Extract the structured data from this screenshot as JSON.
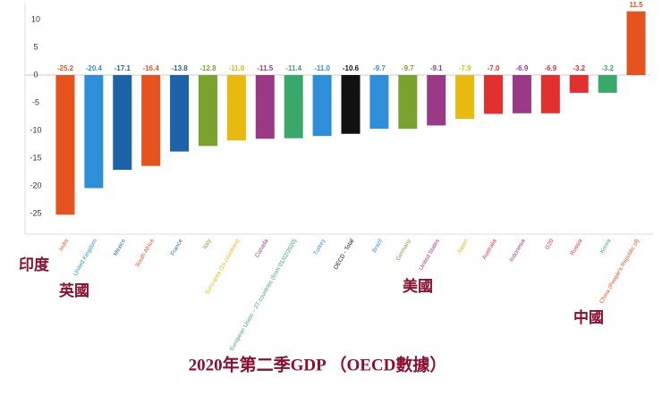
{
  "chart_data": {
    "type": "bar",
    "title": "2020年第二季GDP （OECD數據）",
    "annotations": [
      "印度",
      "英國",
      "美國",
      "中國"
    ],
    "categories": [
      "India",
      "United Kingdom",
      "Mexico",
      "South Africa",
      "France",
      "Italy",
      "Euro area (19 countries)",
      "Canada",
      "European Union – 27 countries (from 01/02/2020)",
      "Turkey",
      "OECD - Total",
      "Brazil",
      "Germany",
      "United States",
      "Japan",
      "Australia",
      "Indonesia",
      "G20",
      "Russia",
      "Korea",
      "China (People's Republic of)"
    ],
    "values": [
      -25.2,
      -20.4,
      -17.1,
      -16.4,
      -13.8,
      -12.8,
      -11.8,
      -11.5,
      -11.4,
      -11.0,
      -10.6,
      -9.7,
      -9.7,
      -9.1,
      -7.9,
      -7.0,
      -6.9,
      -6.9,
      -3.2,
      -3.2,
      11.5
    ],
    "value_labels": [
      "-25.2",
      "-20.4",
      "-17.1",
      "-16.4",
      "-13.8",
      "-12.8",
      "-11.8",
      "-11.5",
      "-11.4",
      "-11.0",
      "-10.6",
      "-9.7",
      "-9.7",
      "-9.1",
      "-7.9",
      "-7.0",
      "-6.9",
      "-6.9",
      "-3.2",
      "-3.2",
      "11.5"
    ],
    "colors": [
      "#e5531f",
      "#2e8fd8",
      "#1e63a8",
      "#e5531f",
      "#1e63a8",
      "#7aa22f",
      "#e8b90f",
      "#9a3a86",
      "#3aa86b",
      "#2e8fd8",
      "#111111",
      "#2e8fd8",
      "#7aa22f",
      "#9a3a86",
      "#e8b90f",
      "#e03030",
      "#9a3a86",
      "#e03030",
      "#e03030",
      "#3aa86b",
      "#e5531f"
    ],
    "ylim": [
      -28,
      12.5
    ],
    "yticks": [
      10,
      5,
      0,
      -5,
      -10,
      -15,
      -20,
      -25
    ],
    "grid": false
  }
}
